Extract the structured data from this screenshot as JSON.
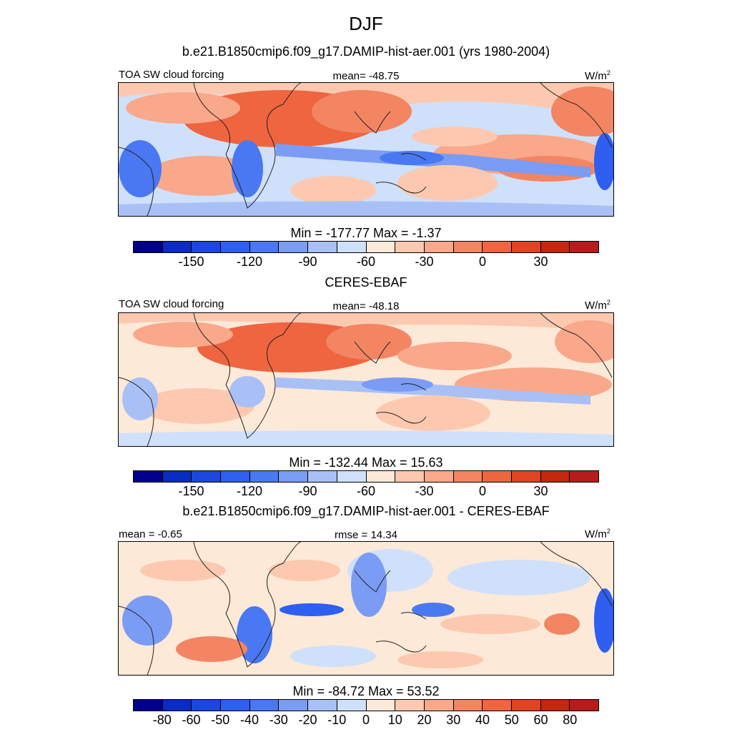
{
  "title": "DJF",
  "panels": [
    {
      "id": "model",
      "subtitle": "b.e21.B1850cmip6.f09_g17.DAMIP-hist-aer.001 (yrs 1980-2004)",
      "left_label": "TOA SW cloud forcing",
      "center_label": "mean= -48.75",
      "unit": "W/m",
      "unit_sup": "2",
      "minmax": "Min = -177.77 Max =  -1.37",
      "colorbar": {
        "colors": [
          "#00008b",
          "#0a2cc4",
          "#1c46e0",
          "#2f5ff0",
          "#4a78f2",
          "#7b9cf4",
          "#a9c0f7",
          "#cfe0fb",
          "#fde9d8",
          "#fcc9b0",
          "#f9a88a",
          "#f38563",
          "#ee6540",
          "#e04422",
          "#c5270f",
          "#b71c1c"
        ],
        "tick_labels": [
          "-150",
          "-120",
          "-90",
          "-60",
          "-30",
          "0",
          "30"
        ]
      }
    },
    {
      "id": "obs",
      "subtitle": "CERES-EBAF",
      "left_label": "TOA SW cloud forcing",
      "center_label": "mean= -48.18",
      "unit": "W/m",
      "unit_sup": "2",
      "minmax": "Min = -132.44 Max =  15.63",
      "colorbar": {
        "colors": [
          "#00008b",
          "#0a2cc4",
          "#1c46e0",
          "#2f5ff0",
          "#4a78f2",
          "#7b9cf4",
          "#a9c0f7",
          "#cfe0fb",
          "#fde9d8",
          "#fcc9b0",
          "#f9a88a",
          "#f38563",
          "#ee6540",
          "#e04422",
          "#c5270f",
          "#b71c1c"
        ],
        "tick_labels": [
          "-150",
          "-120",
          "-90",
          "-60",
          "-30",
          "0",
          "30"
        ]
      }
    },
    {
      "id": "diff",
      "subtitle": "b.e21.B1850cmip6.f09_g17.DAMIP-hist-aer.001 - CERES-EBAF",
      "left_label": "mean =  -0.65",
      "center_label": "rmse =  14.34",
      "unit": "W/m",
      "unit_sup": "2",
      "minmax": "Min = -84.72 Max =  53.52",
      "colorbar": {
        "colors": [
          "#00008b",
          "#0a2cc4",
          "#1c46e0",
          "#2f5ff0",
          "#4a78f2",
          "#7b9cf4",
          "#a9c0f7",
          "#cfe0fb",
          "#fde9d8",
          "#fcc9b0",
          "#f9a88a",
          "#f38563",
          "#ee6540",
          "#e04422",
          "#c5270f",
          "#b71c1c"
        ],
        "tick_labels": [
          "-80",
          "-60",
          "-50",
          "-40",
          "-30",
          "-20",
          "-10",
          "0",
          "10",
          "20",
          "30",
          "40",
          "50",
          "60",
          "80"
        ]
      }
    }
  ]
}
